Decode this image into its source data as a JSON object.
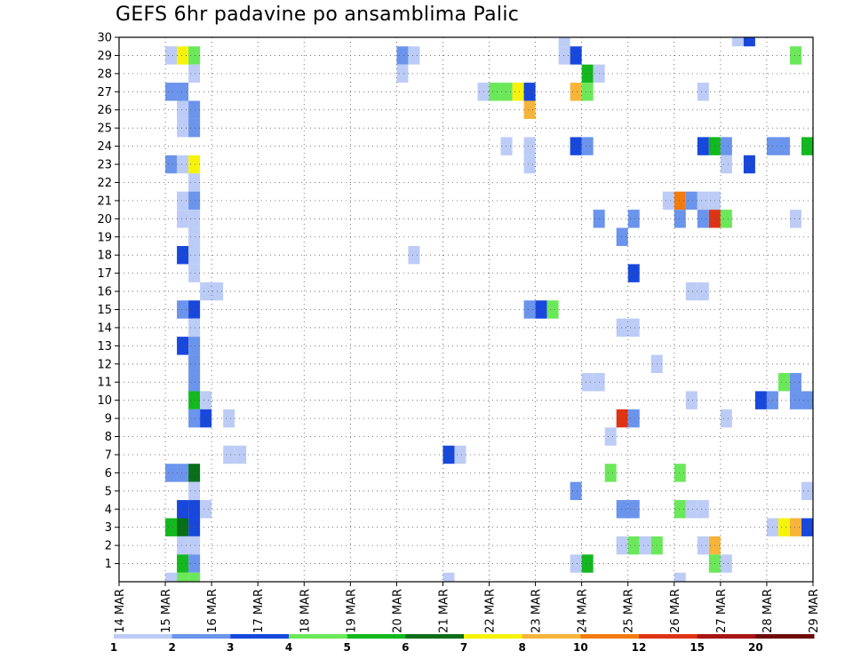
{
  "chart_data": {
    "type": "heatmap",
    "title": "GEFS 6hr padavine po ansamblima Palic",
    "xlabel": "",
    "ylabel": "",
    "x_tick_labels": [
      "14 MAR",
      "15 MAR",
      "16 MAR",
      "17 MAR",
      "18 MAR",
      "19 MAR",
      "20 MAR",
      "21 MAR",
      "22 MAR",
      "23 MAR",
      "24 MAR",
      "25 MAR",
      "26 MAR",
      "27 MAR",
      "28 MAR",
      "29 MAR"
    ],
    "y_tick_labels": [
      "1",
      "2",
      "3",
      "4",
      "5",
      "6",
      "7",
      "8",
      "9",
      "10",
      "11",
      "12",
      "13",
      "14",
      "15",
      "16",
      "17",
      "18",
      "19",
      "20",
      "21",
      "22",
      "23",
      "24",
      "25",
      "26",
      "27",
      "28",
      "29",
      "30"
    ],
    "xlim_days": [
      14,
      29
    ],
    "ylim_members": [
      0,
      30
    ],
    "time_step_hours": 6,
    "grid": "dotted",
    "legend": {
      "position": "bottom",
      "labels": [
        "1",
        "2",
        "3",
        "4",
        "5",
        "6",
        "7",
        "8",
        "10",
        "12",
        "15",
        "20"
      ],
      "colors": [
        "#bcccf6",
        "#6b94ec",
        "#1848db",
        "#6be85a",
        "#13b81e",
        "#096e18",
        "#f7f20c",
        "#f7b43a",
        "#f27b10",
        "#de3414",
        "#a81414",
        "#6e0a0a"
      ]
    },
    "cells_note": "each cell: [member, day_of_march_at_step_start, color_index(0-based into legend colors)]",
    "cells": [
      [
        29,
        15.0,
        0
      ],
      [
        29,
        15.25,
        6
      ],
      [
        29,
        15.5,
        3
      ],
      [
        27,
        15.0,
        1
      ],
      [
        27,
        15.25,
        1
      ],
      [
        28,
        15.5,
        0
      ],
      [
        26,
        15.25,
        0
      ],
      [
        26,
        15.5,
        1
      ],
      [
        25,
        15.25,
        0
      ],
      [
        25,
        15.5,
        1
      ],
      [
        23,
        15.0,
        1
      ],
      [
        23,
        15.25,
        0
      ],
      [
        23,
        15.5,
        6
      ],
      [
        22,
        15.5,
        0
      ],
      [
        21,
        15.25,
        0
      ],
      [
        21,
        15.5,
        1
      ],
      [
        20,
        15.25,
        0
      ],
      [
        20,
        15.5,
        0
      ],
      [
        19,
        15.5,
        0
      ],
      [
        18,
        15.5,
        0
      ],
      [
        18,
        15.25,
        2
      ],
      [
        17,
        15.5,
        0
      ],
      [
        16,
        15.75,
        0
      ],
      [
        16,
        16.0,
        0
      ],
      [
        15,
        15.25,
        1
      ],
      [
        15,
        15.5,
        2
      ],
      [
        14,
        15.5,
        0
      ],
      [
        13,
        15.25,
        2
      ],
      [
        13,
        15.5,
        1
      ],
      [
        12,
        15.5,
        1
      ],
      [
        11,
        15.5,
        1
      ],
      [
        10,
        15.5,
        4
      ],
      [
        10,
        15.75,
        0
      ],
      [
        9,
        15.5,
        1
      ],
      [
        9,
        15.75,
        2
      ],
      [
        9,
        16.25,
        0
      ],
      [
        7,
        16.25,
        0
      ],
      [
        7,
        16.5,
        0
      ],
      [
        6,
        15.0,
        1
      ],
      [
        6,
        15.25,
        1
      ],
      [
        6,
        15.5,
        5
      ],
      [
        5,
        15.5,
        0
      ],
      [
        4,
        15.25,
        2
      ],
      [
        4,
        15.5,
        2
      ],
      [
        4,
        15.75,
        0
      ],
      [
        3,
        15.0,
        4
      ],
      [
        3,
        15.25,
        5
      ],
      [
        3,
        15.5,
        2
      ],
      [
        2,
        15.25,
        0
      ],
      [
        2,
        15.5,
        0
      ],
      [
        1,
        15.25,
        4
      ],
      [
        1,
        15.5,
        1
      ],
      [
        0,
        15.0,
        0
      ],
      [
        0,
        15.25,
        3
      ],
      [
        0,
        15.5,
        3
      ],
      [
        29,
        20.0,
        1
      ],
      [
        29,
        20.25,
        0
      ],
      [
        28,
        20.0,
        0
      ],
      [
        18,
        20.25,
        0
      ],
      [
        7,
        21.0,
        2
      ],
      [
        7,
        21.25,
        0
      ],
      [
        0,
        21.0,
        0
      ],
      [
        27,
        21.75,
        0
      ],
      [
        27,
        22.0,
        3
      ],
      [
        27,
        22.25,
        3
      ],
      [
        27,
        22.5,
        6
      ],
      [
        27,
        22.75,
        2
      ],
      [
        26,
        22.75,
        7
      ],
      [
        24,
        22.25,
        0
      ],
      [
        24,
        22.75,
        0
      ],
      [
        23,
        22.75,
        0
      ],
      [
        15,
        22.75,
        1
      ],
      [
        15,
        23.0,
        2
      ],
      [
        15,
        23.25,
        3
      ],
      [
        30,
        23.5,
        0
      ],
      [
        29,
        23.5,
        0
      ],
      [
        29,
        23.75,
        2
      ],
      [
        28,
        24.0,
        4
      ],
      [
        28,
        24.25,
        0
      ],
      [
        27,
        23.75,
        7
      ],
      [
        27,
        24.0,
        3
      ],
      [
        24,
        23.75,
        2
      ],
      [
        24,
        24.0,
        1
      ],
      [
        20,
        24.25,
        1
      ],
      [
        19,
        24.75,
        1
      ],
      [
        20,
        25.0,
        1
      ],
      [
        21,
        25.75,
        0
      ],
      [
        17,
        25.0,
        2
      ],
      [
        14,
        24.75,
        0
      ],
      [
        14,
        25.0,
        0
      ],
      [
        12,
        25.5,
        0
      ],
      [
        11,
        24.0,
        0
      ],
      [
        11,
        24.25,
        0
      ],
      [
        10,
        26.25,
        0
      ],
      [
        9,
        24.75,
        9
      ],
      [
        9,
        25.0,
        1
      ],
      [
        8,
        24.5,
        0
      ],
      [
        6,
        24.5,
        3
      ],
      [
        5,
        23.75,
        1
      ],
      [
        4,
        24.75,
        1
      ],
      [
        4,
        25.0,
        1
      ],
      [
        2,
        24.75,
        0
      ],
      [
        2,
        25.0,
        3
      ],
      [
        2,
        25.25,
        0
      ],
      [
        2,
        25.5,
        3
      ],
      [
        1,
        23.75,
        0
      ],
      [
        1,
        24.0,
        4
      ],
      [
        0,
        26.0,
        0
      ],
      [
        21,
        26.0,
        8
      ],
      [
        21,
        26.25,
        1
      ],
      [
        21,
        26.5,
        0
      ],
      [
        21,
        26.75,
        0
      ],
      [
        20,
        26.0,
        1
      ],
      [
        20,
        26.5,
        1
      ],
      [
        20,
        26.75,
        9
      ],
      [
        20,
        27.0,
        3
      ],
      [
        24,
        26.5,
        2
      ],
      [
        24,
        26.75,
        4
      ],
      [
        24,
        27.0,
        1
      ],
      [
        27,
        26.5,
        0
      ],
      [
        23,
        27.0,
        0
      ],
      [
        16,
        26.25,
        0
      ],
      [
        16,
        26.5,
        0
      ],
      [
        9,
        27.0,
        0
      ],
      [
        6,
        26.0,
        3
      ],
      [
        4,
        26.0,
        3
      ],
      [
        4,
        26.25,
        0
      ],
      [
        4,
        26.5,
        0
      ],
      [
        2,
        26.5,
        0
      ],
      [
        2,
        26.75,
        7
      ],
      [
        1,
        26.75,
        3
      ],
      [
        1,
        27.0,
        0
      ],
      [
        30,
        27.25,
        0
      ],
      [
        30,
        27.5,
        2
      ],
      [
        23,
        27.5,
        2
      ],
      [
        29,
        28.5,
        3
      ],
      [
        24,
        28.0,
        1
      ],
      [
        24,
        28.25,
        1
      ],
      [
        24,
        28.75,
        4
      ],
      [
        20,
        28.5,
        0
      ],
      [
        11,
        28.25,
        3
      ],
      [
        11,
        28.5,
        1
      ],
      [
        10,
        27.75,
        2
      ],
      [
        10,
        28.0,
        1
      ],
      [
        10,
        28.5,
        1
      ],
      [
        10,
        28.75,
        1
      ],
      [
        5,
        28.75,
        0
      ],
      [
        3,
        28.0,
        0
      ],
      [
        3,
        28.25,
        6
      ],
      [
        3,
        28.5,
        7
      ],
      [
        3,
        28.75,
        2
      ]
    ]
  }
}
